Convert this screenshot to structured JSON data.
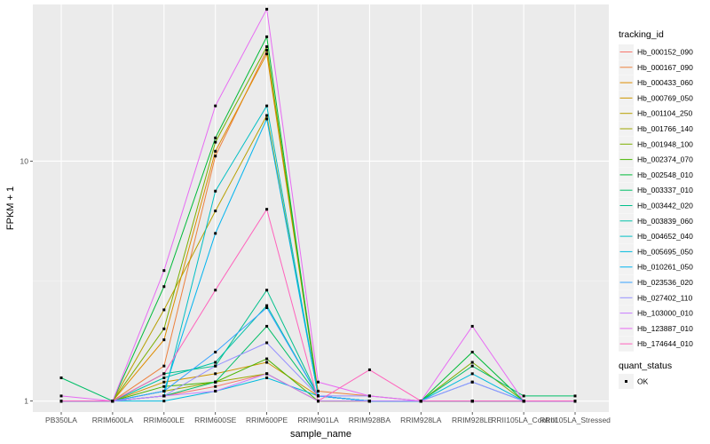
{
  "chart_data": {
    "type": "line",
    "title": "",
    "xlabel": "sample_name",
    "ylabel": "FPKM + 1",
    "y_scale": "log10",
    "ylim": [
      0.9,
      45
    ],
    "y_ticks": [
      1,
      10
    ],
    "y_tick_labels": [
      "1",
      "10"
    ],
    "grid": true,
    "legend_position": "right",
    "categories": [
      "PB350LA",
      "RRIM600LA",
      "RRIM600LE",
      "RRIM600SE",
      "RRIM600PE",
      "RRIM901LA",
      "RRIM928BA",
      "RRIM928LA",
      "RRIM928LE",
      "RRII105LA_Control",
      "RRII105LA_Stressed"
    ],
    "legend_title": "tracking_id",
    "quant_status": {
      "title": "quant_status",
      "entries": [
        "OK"
      ]
    },
    "series": [
      {
        "name": "Hb_000152_090",
        "color": "#F8766D",
        "values": [
          1.0,
          1.0,
          1.05,
          1.15,
          1.3,
          1.0,
          1.0,
          1.0,
          1.0,
          1.0,
          1.0
        ]
      },
      {
        "name": "Hb_000167_090",
        "color": "#ED813E",
        "values": [
          1.0,
          1.0,
          1.4,
          10.5,
          29.0,
          1.1,
          1.05,
          1.0,
          1.0,
          1.0,
          1.0
        ]
      },
      {
        "name": "Hb_000433_060",
        "color": "#DE8C00",
        "values": [
          1.0,
          1.0,
          1.8,
          11.0,
          28.0,
          1.05,
          1.0,
          1.0,
          1.0,
          1.0,
          1.0
        ]
      },
      {
        "name": "Hb_000769_050",
        "color": "#CD9600",
        "values": [
          1.0,
          1.0,
          1.2,
          1.3,
          1.45,
          1.05,
          1.0,
          1.0,
          1.0,
          1.0,
          1.0
        ]
      },
      {
        "name": "Hb_001104_250",
        "color": "#B79F00",
        "values": [
          1.0,
          1.0,
          2.4,
          6.2,
          15.5,
          1.05,
          1.0,
          1.0,
          1.0,
          1.0,
          1.0
        ]
      },
      {
        "name": "Hb_001766_140",
        "color": "#9DA700",
        "values": [
          1.0,
          1.0,
          1.1,
          1.2,
          1.3,
          1.0,
          1.0,
          1.0,
          1.0,
          1.0,
          1.0
        ]
      },
      {
        "name": "Hb_001948_100",
        "color": "#7CAE00",
        "values": [
          1.0,
          1.0,
          2.0,
          12.0,
          30.0,
          1.05,
          1.0,
          1.0,
          1.45,
          1.0,
          1.0
        ]
      },
      {
        "name": "Hb_002374_070",
        "color": "#49B500",
        "values": [
          1.0,
          1.0,
          1.15,
          1.2,
          1.5,
          1.0,
          1.0,
          1.0,
          1.0,
          1.0,
          1.0
        ]
      },
      {
        "name": "Hb_002548_010",
        "color": "#00BA38",
        "values": [
          1.0,
          1.0,
          3.0,
          12.5,
          33.0,
          1.05,
          1.0,
          1.0,
          1.6,
          1.0,
          1.0
        ]
      },
      {
        "name": "Hb_003337_010",
        "color": "#00BE67",
        "values": [
          1.25,
          1.0,
          1.05,
          1.2,
          2.05,
          1.05,
          1.0,
          1.0,
          1.4,
          1.05,
          1.05
        ]
      },
      {
        "name": "Hb_003442_020",
        "color": "#00C08B",
        "values": [
          1.0,
          1.0,
          1.3,
          1.4,
          2.9,
          1.05,
          1.0,
          1.0,
          1.0,
          1.0,
          1.0
        ]
      },
      {
        "name": "Hb_003839_060",
        "color": "#00C1A9",
        "values": [
          1.0,
          1.0,
          1.25,
          1.45,
          2.5,
          1.05,
          1.0,
          1.0,
          1.0,
          1.0,
          1.0
        ]
      },
      {
        "name": "Hb_004652_040",
        "color": "#00BFC4",
        "values": [
          1.0,
          1.0,
          1.05,
          7.5,
          17.0,
          1.05,
          1.0,
          1.0,
          1.0,
          1.0,
          1.0
        ]
      },
      {
        "name": "Hb_005695_050",
        "color": "#00BADE",
        "values": [
          1.0,
          1.0,
          1.0,
          1.1,
          1.25,
          1.05,
          1.0,
          1.0,
          1.3,
          1.0,
          1.0
        ]
      },
      {
        "name": "Hb_010261_050",
        "color": "#00B4EF",
        "values": [
          1.0,
          1.0,
          1.1,
          5.0,
          15.0,
          1.05,
          1.0,
          1.0,
          1.2,
          1.0,
          1.0
        ]
      },
      {
        "name": "Hb_023536_020",
        "color": "#35A2FF",
        "values": [
          1.0,
          1.0,
          1.1,
          1.6,
          2.45,
          1.05,
          1.0,
          1.0,
          1.0,
          1.0,
          1.0
        ]
      },
      {
        "name": "Hb_027402_110",
        "color": "#9590FF",
        "values": [
          1.0,
          1.0,
          1.05,
          1.4,
          1.75,
          1.05,
          1.05,
          1.0,
          1.2,
          1.0,
          1.0
        ]
      },
      {
        "name": "Hb_103000_010",
        "color": "#C77CFF",
        "values": [
          1.0,
          1.0,
          1.05,
          1.1,
          1.3,
          1.0,
          1.0,
          1.0,
          1.0,
          1.0,
          1.0
        ]
      },
      {
        "name": "Hb_123887_010",
        "color": "#E76BF3",
        "values": [
          1.05,
          1.0,
          3.5,
          17.0,
          43.0,
          1.2,
          1.05,
          1.0,
          2.05,
          1.0,
          1.0
        ]
      },
      {
        "name": "Hb_174644_010",
        "color": "#FF62BC",
        "values": [
          1.0,
          1.0,
          1.3,
          2.9,
          6.3,
          1.0,
          1.35,
          1.0,
          1.0,
          1.0,
          1.0
        ]
      }
    ]
  }
}
